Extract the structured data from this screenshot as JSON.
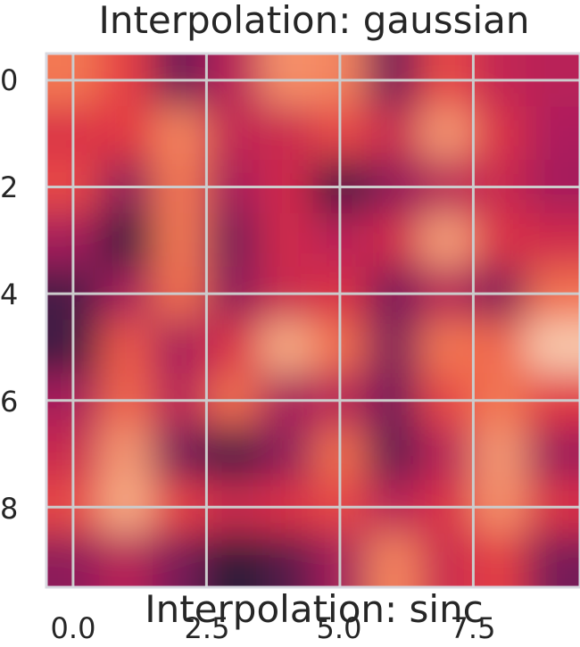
{
  "titles": {
    "top": "Interpolation: gaussian",
    "bottom": "Interpolation: sinc"
  },
  "chart_data": {
    "type": "heatmap",
    "interpolation": "gaussian",
    "colormap": "rocket",
    "colormap_stops": [
      "#03051a",
      "#2e1e3b",
      "#701f57",
      "#b11f5d",
      "#e13342",
      "#f37651",
      "#f7b089",
      "#faebdd"
    ],
    "xlim": [
      -0.5,
      9.5
    ],
    "ylim": [
      9.5,
      -0.5
    ],
    "xticks": [
      "0.0",
      "2.5",
      "5.0",
      "7.5"
    ],
    "xtick_values": [
      0.0,
      2.5,
      5.0,
      7.5
    ],
    "yticks": [
      "0",
      "2",
      "4",
      "6",
      "8"
    ],
    "ytick_values": [
      0,
      2,
      4,
      6,
      8
    ],
    "grid": true,
    "grid_color": "#cccccc",
    "value_range": [
      0,
      1
    ],
    "values": [
      [
        0.72,
        0.6,
        0.28,
        0.45,
        0.78,
        0.75,
        0.3,
        0.62,
        0.48,
        0.45
      ],
      [
        0.55,
        0.58,
        0.75,
        0.48,
        0.5,
        0.62,
        0.5,
        0.8,
        0.55,
        0.42
      ],
      [
        0.62,
        0.35,
        0.72,
        0.4,
        0.52,
        0.18,
        0.35,
        0.45,
        0.5,
        0.4
      ],
      [
        0.4,
        0.15,
        0.72,
        0.3,
        0.52,
        0.45,
        0.52,
        0.82,
        0.55,
        0.52
      ],
      [
        0.2,
        0.4,
        0.7,
        0.35,
        0.5,
        0.55,
        0.3,
        0.45,
        0.32,
        0.7
      ],
      [
        0.18,
        0.65,
        0.4,
        0.55,
        0.85,
        0.7,
        0.32,
        0.72,
        0.68,
        0.92
      ],
      [
        0.4,
        0.68,
        0.45,
        0.7,
        0.4,
        0.45,
        0.3,
        0.62,
        0.72,
        0.58
      ],
      [
        0.5,
        0.8,
        0.3,
        0.18,
        0.35,
        0.7,
        0.25,
        0.45,
        0.8,
        0.38
      ],
      [
        0.62,
        0.85,
        0.6,
        0.5,
        0.55,
        0.62,
        0.45,
        0.55,
        0.78,
        0.55
      ],
      [
        0.35,
        0.45,
        0.3,
        0.12,
        0.22,
        0.4,
        0.75,
        0.5,
        0.6,
        0.3
      ]
    ]
  }
}
